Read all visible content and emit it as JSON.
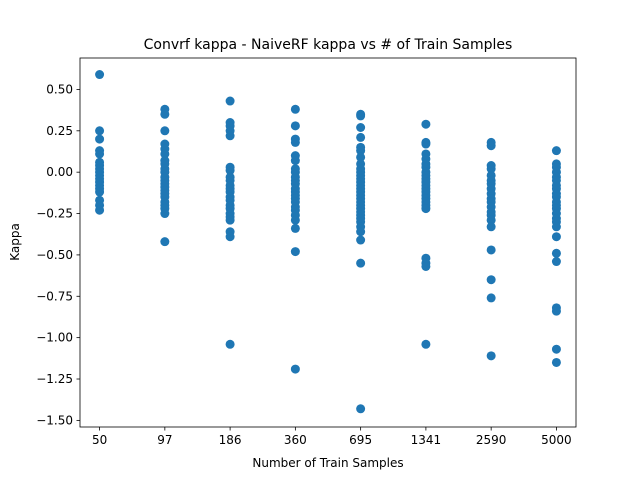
{
  "chart_data": {
    "type": "scatter",
    "title": "Convrf kappa - NaiveRF kappa vs # of Train Samples",
    "xlabel": "Number of Train Samples",
    "ylabel": "Kappa",
    "categories": [
      "50",
      "97",
      "186",
      "360",
      "695",
      "1341",
      "2590",
      "5000"
    ],
    "ylim": [
      -1.54,
      0.69
    ],
    "yticks": [
      0.5,
      0.25,
      0.0,
      -0.25,
      -0.5,
      -0.75,
      -1.0,
      -1.25,
      -1.5
    ],
    "ytick_labels": [
      "0.50",
      "0.25",
      "0.00",
      "−0.25",
      "−0.50",
      "−0.75",
      "−1.00",
      "−1.25",
      "−1.50"
    ],
    "grid": false,
    "marker_color": "#1f77b4",
    "series": [
      {
        "points": [
          {
            "category": "50",
            "values": [
              0.59,
              0.25,
              0.2,
              0.13,
              0.11,
              0.06,
              0.04,
              0.02,
              0.0,
              -0.02,
              -0.04,
              -0.06,
              -0.08,
              -0.1,
              -0.12,
              -0.17,
              -0.2,
              -0.23
            ]
          },
          {
            "category": "97",
            "values": [
              0.38,
              0.35,
              0.25,
              0.17,
              0.14,
              0.11,
              0.07,
              0.05,
              0.02,
              0.0,
              -0.03,
              -0.05,
              -0.07,
              -0.09,
              -0.11,
              -0.13,
              -0.15,
              -0.18,
              -0.2,
              -0.22,
              -0.25,
              -0.42
            ]
          },
          {
            "category": "186",
            "values": [
              0.43,
              0.3,
              0.28,
              0.25,
              0.22,
              0.03,
              0.01,
              -0.03,
              -0.05,
              -0.08,
              -0.1,
              -0.12,
              -0.15,
              -0.17,
              -0.2,
              -0.22,
              -0.25,
              -0.27,
              -0.29,
              -0.36,
              -0.39,
              -1.04
            ]
          },
          {
            "category": "360",
            "values": [
              0.38,
              0.28,
              0.2,
              0.18,
              0.1,
              0.07,
              0.02,
              0.0,
              -0.03,
              -0.05,
              -0.07,
              -0.1,
              -0.12,
              -0.14,
              -0.16,
              -0.18,
              -0.21,
              -0.23,
              -0.26,
              -0.29,
              -0.34,
              -0.48,
              -1.19
            ]
          },
          {
            "category": "695",
            "values": [
              0.35,
              0.34,
              0.27,
              0.21,
              0.15,
              0.13,
              0.09,
              0.05,
              0.02,
              0.0,
              -0.02,
              -0.04,
              -0.06,
              -0.08,
              -0.1,
              -0.12,
              -0.14,
              -0.16,
              -0.18,
              -0.2,
              -0.22,
              -0.24,
              -0.26,
              -0.28,
              -0.3,
              -0.33,
              -0.36,
              -0.41,
              -0.55,
              -1.43
            ]
          },
          {
            "category": "1341",
            "values": [
              0.29,
              0.18,
              0.17,
              0.11,
              0.08,
              0.05,
              0.03,
              0.0,
              -0.02,
              -0.04,
              -0.06,
              -0.08,
              -0.1,
              -0.12,
              -0.14,
              -0.16,
              -0.18,
              -0.2,
              -0.22,
              -0.52,
              -0.55,
              -0.57,
              -1.04
            ]
          },
          {
            "category": "2590",
            "values": [
              0.18,
              0.16,
              0.04,
              0.02,
              -0.02,
              -0.05,
              -0.07,
              -0.1,
              -0.13,
              -0.16,
              -0.18,
              -0.21,
              -0.24,
              -0.26,
              -0.29,
              -0.33,
              -0.47,
              -0.65,
              -0.76,
              -1.11
            ]
          },
          {
            "category": "5000",
            "values": [
              0.13,
              0.05,
              0.03,
              0.0,
              -0.03,
              -0.05,
              -0.08,
              -0.1,
              -0.13,
              -0.15,
              -0.18,
              -0.2,
              -0.22,
              -0.25,
              -0.28,
              -0.3,
              -0.33,
              -0.39,
              -0.49,
              -0.54,
              -0.82,
              -0.84,
              -1.07,
              -1.15
            ]
          }
        ]
      }
    ]
  }
}
